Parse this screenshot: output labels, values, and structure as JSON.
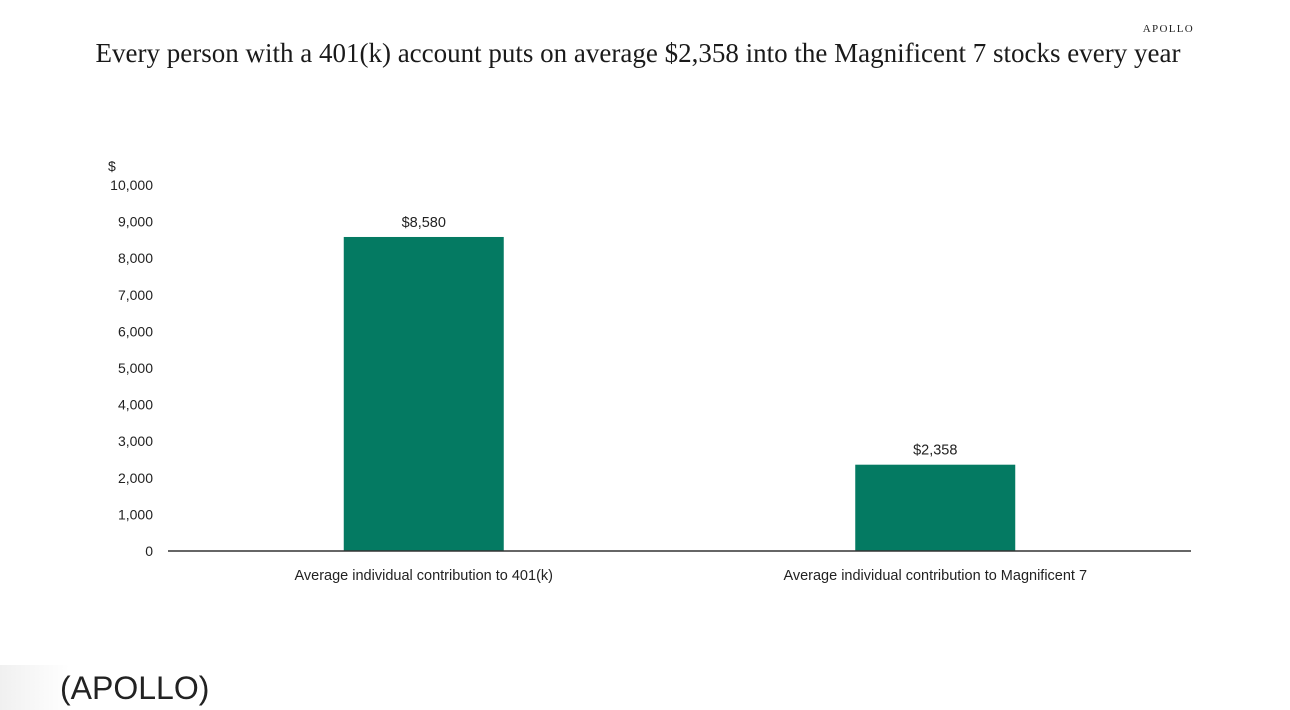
{
  "brand": "APOLLO",
  "title": "Every person with a 401(k) account puts on average $2,358 into the Magnificent 7 stocks every year",
  "source": "(APOLLO)",
  "chart_data": {
    "type": "bar",
    "categories": [
      "Average individual contribution to 401(k)",
      "Average individual contribution to Magnificent 7"
    ],
    "values": [
      8580,
      2358
    ],
    "data_labels": [
      "$8,580",
      "$2,358"
    ],
    "ylabel": "$",
    "ylim": [
      0,
      10000
    ],
    "yticks": [
      0,
      1000,
      2000,
      3000,
      4000,
      5000,
      6000,
      7000,
      8000,
      9000,
      10000
    ],
    "ytick_labels": [
      "0",
      "1,000",
      "2,000",
      "3,000",
      "4,000",
      "5,000",
      "6,000",
      "7,000",
      "8,000",
      "9,000",
      "10,000"
    ],
    "grid": false,
    "legend": "none",
    "bar_color": "#047a62",
    "axis_color": "#333333"
  }
}
